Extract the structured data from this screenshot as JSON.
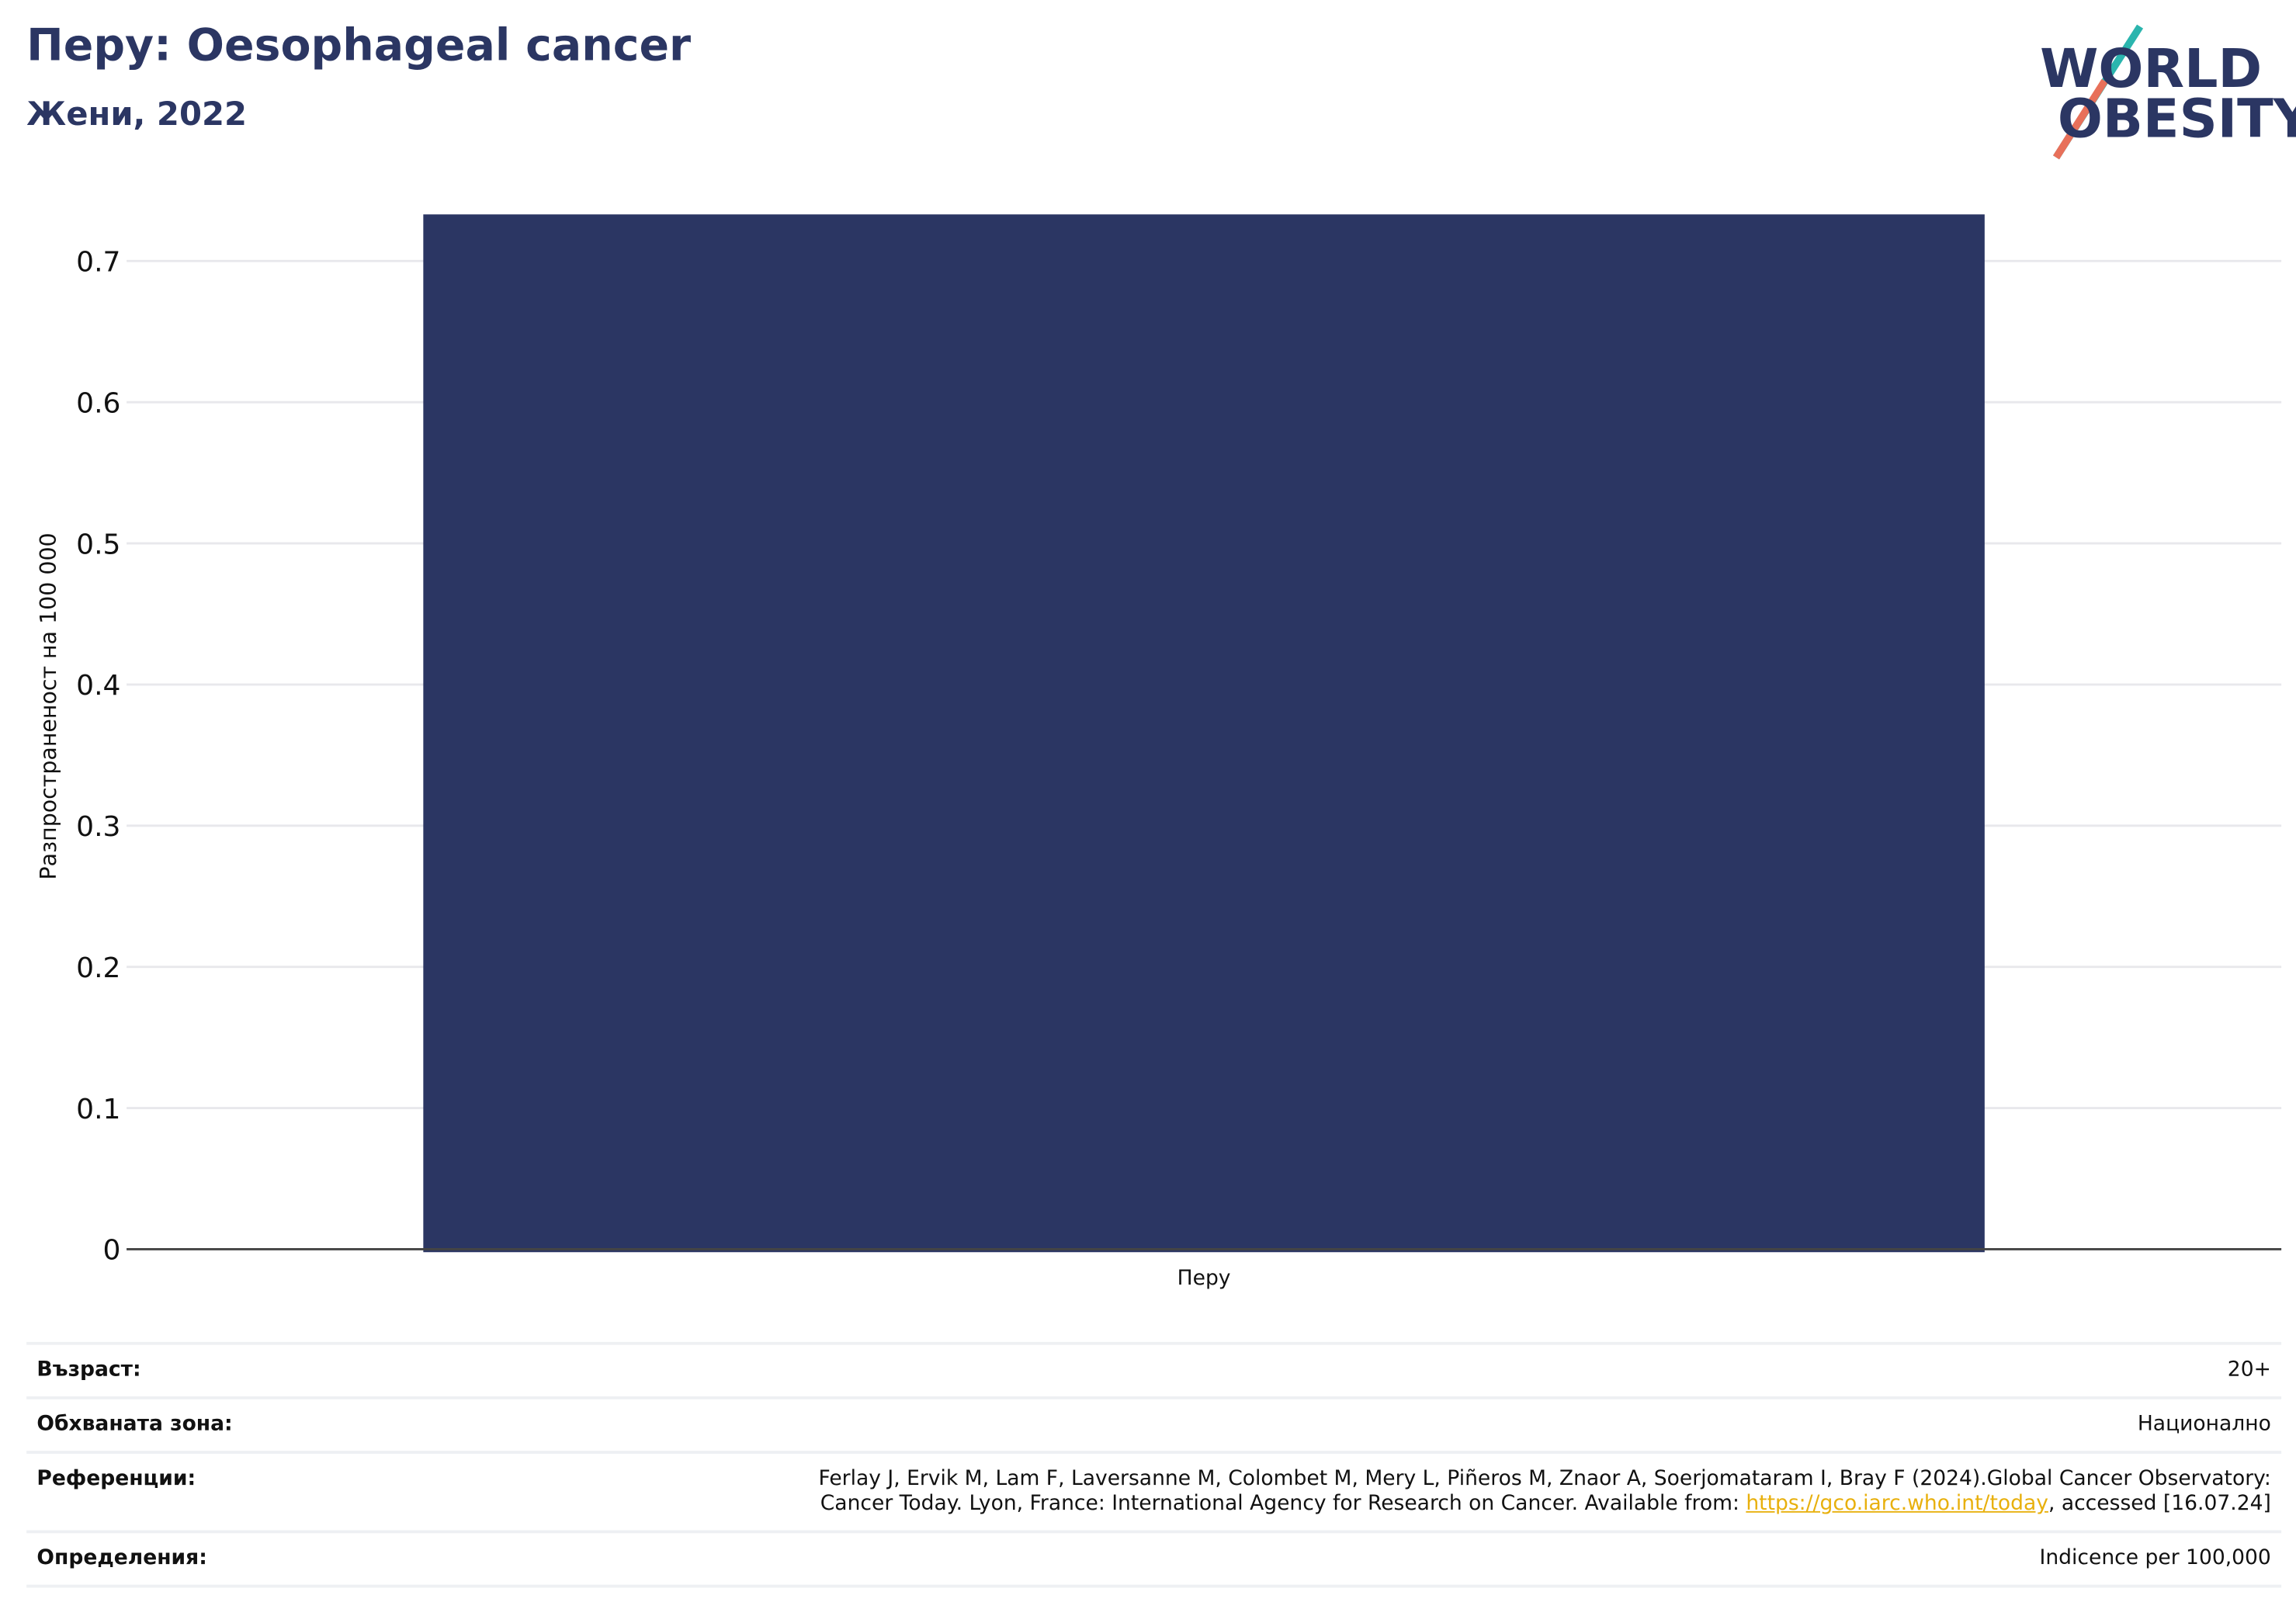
{
  "header": {
    "title": "Перу: Oesophageal cancer",
    "subtitle": "Жени, 2022",
    "logo_line1": "WORLD",
    "logo_line2": "OBESITY"
  },
  "chart_data": {
    "type": "bar",
    "categories": [
      "Перу"
    ],
    "values": [
      0.733
    ],
    "color": "#2b3663",
    "ylabel": "Разпространеност  на 100 000",
    "ylim": [
      0,
      0.74
    ],
    "yticks": [
      0,
      0.1,
      0.2,
      0.3,
      0.4,
      0.5,
      0.6,
      0.7
    ],
    "grid": true
  },
  "meta": {
    "age_label": "Възраст:",
    "age": "20+",
    "area_label": "Обхваната зона:",
    "area": "Национално",
    "refs_label": "Референции:",
    "refs_line1": "Ferlay J, Ervik M, Lam F, Laversanne M, Colombet M, Mery L, Piñeros M, Znaor A, Soerjomataram I, Bray F (2024).Global Cancer Observatory:",
    "refs_line2": "Cancer Today. Lyon, France: International Agency for Research on Cancer. Available from: ",
    "refs_link": "https://gco.iarc.who.int/today",
    "refs_suffix": ", accessed [16.07.24]",
    "def_label": "Определения:",
    "def": "Indicence per 100,000"
  }
}
